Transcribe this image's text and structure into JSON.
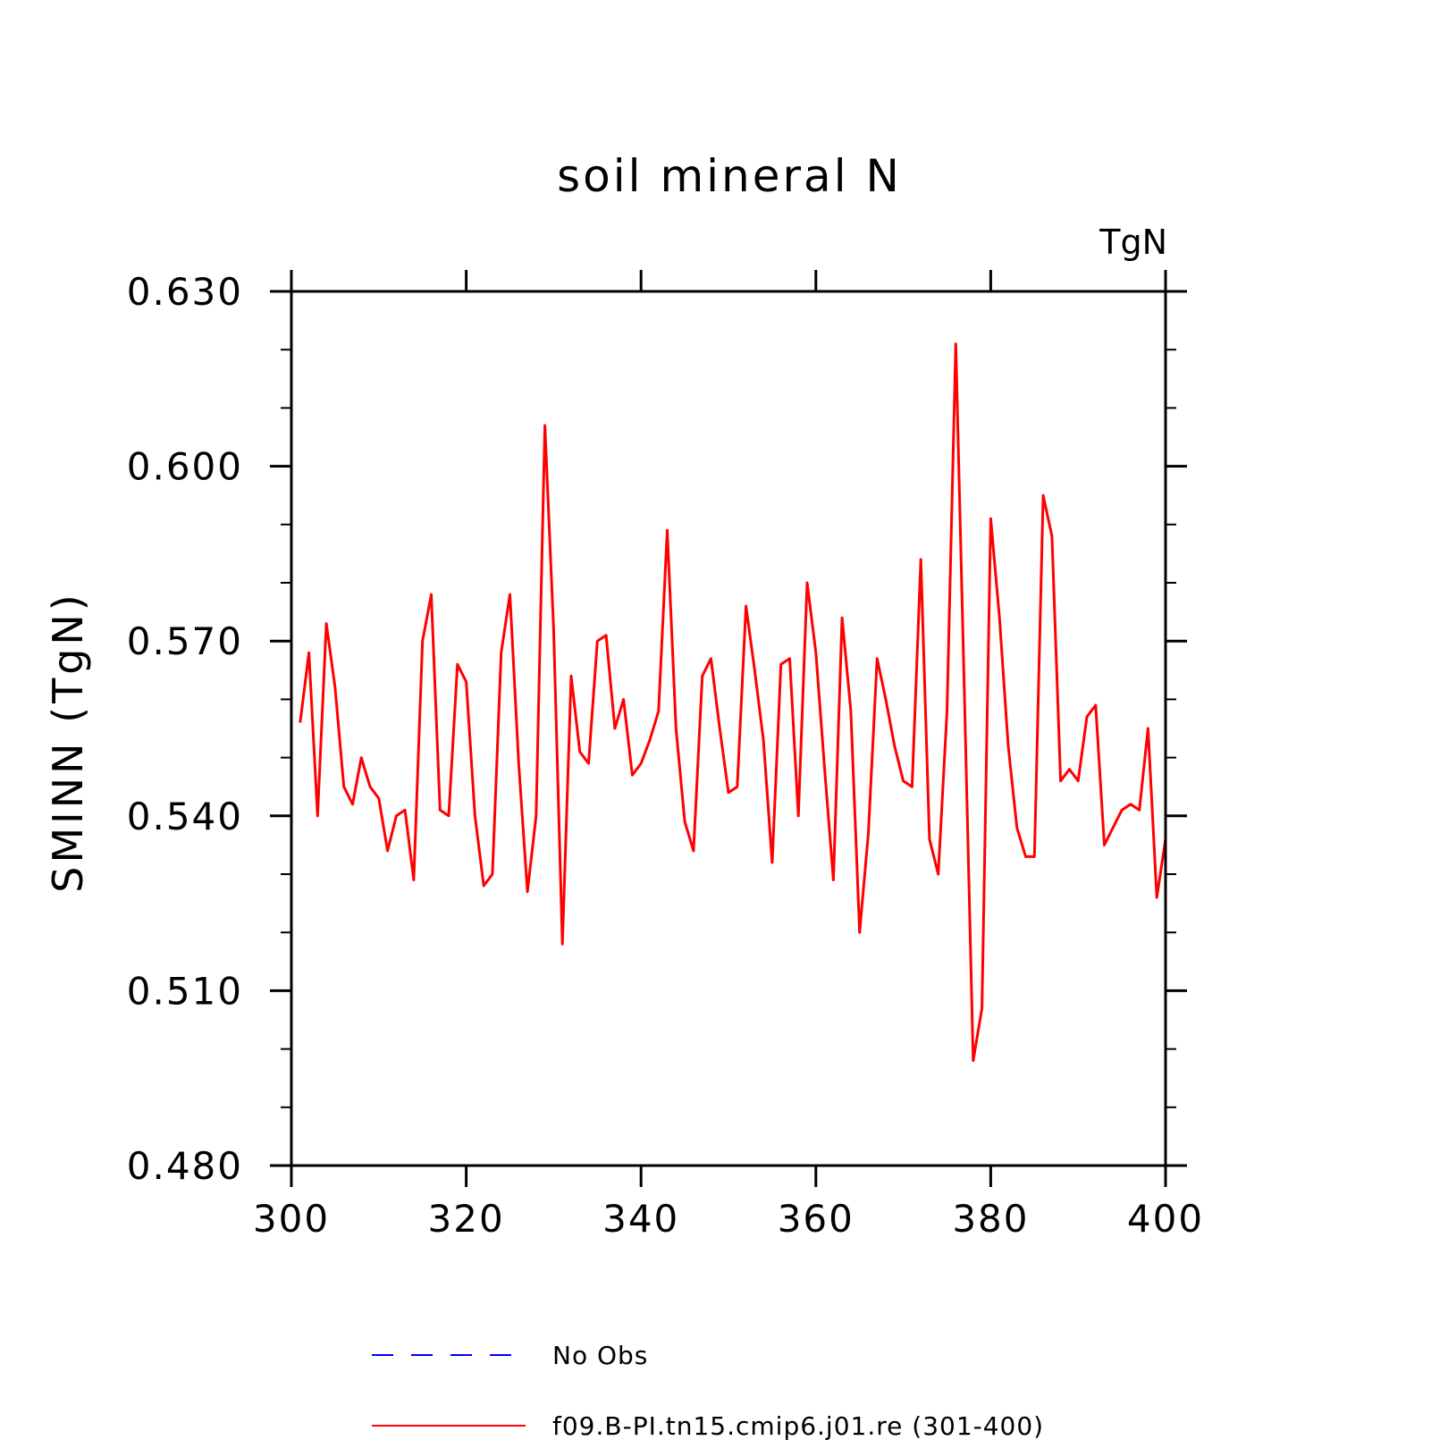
{
  "chart_data": {
    "type": "line",
    "title": "soil mineral N",
    "ylabel": "SMINN   (TgN)",
    "units": "TgN",
    "xlim": [
      300,
      400
    ],
    "ylim": [
      0.48,
      0.63
    ],
    "xticks": [
      300,
      320,
      340,
      360,
      380,
      400
    ],
    "yticks": [
      0.48,
      0.51,
      0.54,
      0.57,
      0.6,
      0.63
    ],
    "xtick_labels": [
      "300",
      "320",
      "340",
      "360",
      "380",
      "400"
    ],
    "ytick_labels": [
      "0.480",
      "0.510",
      "0.540",
      "0.570",
      "0.600",
      "0.630"
    ],
    "legend": [
      {
        "label": "No Obs",
        "color": "#0000ff",
        "style": "dashed"
      },
      {
        "label": "f09.B-PI.tn15.cmip6.j01.re (301-400)",
        "color": "#ff0000",
        "style": "solid"
      }
    ],
    "series": [
      {
        "name": "f09.B-PI.tn15.cmip6.j01.re (301-400)",
        "color": "#ff0000",
        "x": [
          301,
          302,
          303,
          304,
          305,
          306,
          307,
          308,
          309,
          310,
          311,
          312,
          313,
          314,
          315,
          316,
          317,
          318,
          319,
          320,
          321,
          322,
          323,
          324,
          325,
          326,
          327,
          328,
          329,
          330,
          331,
          332,
          333,
          334,
          335,
          336,
          337,
          338,
          339,
          340,
          341,
          342,
          343,
          344,
          345,
          346,
          347,
          348,
          349,
          350,
          351,
          352,
          353,
          354,
          355,
          356,
          357,
          358,
          359,
          360,
          361,
          362,
          363,
          364,
          365,
          366,
          367,
          368,
          369,
          370,
          371,
          372,
          373,
          374,
          375,
          376,
          377,
          378,
          379,
          380,
          381,
          382,
          383,
          384,
          385,
          386,
          387,
          388,
          389,
          390,
          391,
          392,
          393,
          394,
          395,
          396,
          397,
          398,
          399,
          400
        ],
        "values": [
          0.556,
          0.568,
          0.54,
          0.573,
          0.562,
          0.545,
          0.542,
          0.55,
          0.545,
          0.543,
          0.534,
          0.54,
          0.541,
          0.529,
          0.57,
          0.578,
          0.541,
          0.54,
          0.566,
          0.563,
          0.54,
          0.528,
          0.53,
          0.568,
          0.578,
          0.549,
          0.527,
          0.54,
          0.607,
          0.572,
          0.518,
          0.564,
          0.551,
          0.549,
          0.57,
          0.571,
          0.555,
          0.56,
          0.547,
          0.549,
          0.553,
          0.558,
          0.589,
          0.555,
          0.539,
          0.534,
          0.564,
          0.567,
          0.555,
          0.544,
          0.545,
          0.576,
          0.565,
          0.553,
          0.532,
          0.566,
          0.567,
          0.54,
          0.58,
          0.568,
          0.548,
          0.529,
          0.574,
          0.558,
          0.52,
          0.537,
          0.567,
          0.56,
          0.552,
          0.546,
          0.545,
          0.584,
          0.536,
          0.53,
          0.558,
          0.621,
          0.56,
          0.498,
          0.507,
          0.591,
          0.574,
          0.552,
          0.538,
          0.533,
          0.533,
          0.595,
          0.588,
          0.546,
          0.548,
          0.546,
          0.557,
          0.559,
          0.535,
          0.538,
          0.541,
          0.542,
          0.541,
          0.555,
          0.526,
          0.536
        ]
      }
    ]
  }
}
